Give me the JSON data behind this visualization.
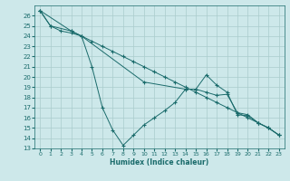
{
  "xlabel": "Humidex (Indice chaleur)",
  "xlim": [
    -0.5,
    23.5
  ],
  "ylim": [
    13,
    27
  ],
  "yticks": [
    13,
    14,
    15,
    16,
    17,
    18,
    19,
    20,
    21,
    22,
    23,
    24,
    25,
    26
  ],
  "xticks": [
    0,
    1,
    2,
    3,
    4,
    5,
    6,
    7,
    8,
    9,
    10,
    11,
    12,
    13,
    14,
    15,
    16,
    17,
    18,
    19,
    20,
    21,
    22,
    23
  ],
  "bg_color": "#cde8ea",
  "grid_color": "#aacccc",
  "line_color": "#1a6b6b",
  "series1": [
    [
      0,
      26.5
    ],
    [
      1,
      25.0
    ],
    [
      2,
      24.5
    ],
    [
      3,
      24.3
    ],
    [
      4,
      24.0
    ],
    [
      5,
      23.5
    ],
    [
      6,
      23.0
    ],
    [
      7,
      22.5
    ],
    [
      8,
      22.0
    ],
    [
      9,
      21.5
    ],
    [
      10,
      21.0
    ],
    [
      11,
      20.5
    ],
    [
      12,
      20.0
    ],
    [
      13,
      19.5
    ],
    [
      14,
      19.0
    ],
    [
      15,
      18.5
    ],
    [
      16,
      18.0
    ],
    [
      17,
      17.5
    ],
    [
      18,
      17.0
    ],
    [
      19,
      16.5
    ],
    [
      20,
      16.0
    ],
    [
      21,
      15.5
    ],
    [
      22,
      15.0
    ],
    [
      23,
      14.3
    ]
  ],
  "series2": [
    [
      0,
      26.5
    ],
    [
      1,
      25.0
    ],
    [
      3,
      24.5
    ],
    [
      4,
      24.0
    ],
    [
      5,
      21.0
    ],
    [
      6,
      17.0
    ],
    [
      7,
      14.8
    ],
    [
      8,
      13.3
    ],
    [
      9,
      14.3
    ],
    [
      10,
      15.3
    ],
    [
      11,
      16.0
    ],
    [
      12,
      16.7
    ],
    [
      13,
      17.5
    ],
    [
      14,
      18.8
    ],
    [
      15,
      18.8
    ],
    [
      16,
      20.2
    ],
    [
      17,
      19.2
    ],
    [
      18,
      18.5
    ],
    [
      19,
      16.3
    ],
    [
      20,
      16.2
    ],
    [
      21,
      15.5
    ],
    [
      22,
      15.0
    ],
    [
      23,
      14.3
    ]
  ],
  "series3": [
    [
      0,
      26.5
    ],
    [
      3,
      24.5
    ],
    [
      4,
      24.0
    ],
    [
      10,
      19.5
    ],
    [
      14,
      18.8
    ],
    [
      15,
      18.8
    ],
    [
      16,
      18.5
    ],
    [
      17,
      18.2
    ],
    [
      18,
      18.3
    ],
    [
      19,
      16.5
    ],
    [
      20,
      16.3
    ],
    [
      21,
      15.5
    ],
    [
      22,
      15.0
    ],
    [
      23,
      14.3
    ]
  ]
}
